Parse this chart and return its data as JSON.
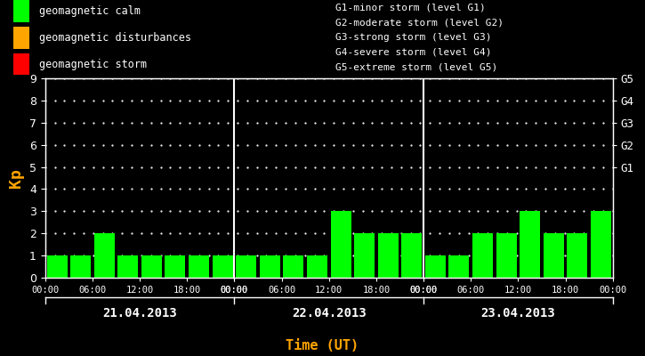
{
  "background_color": "#000000",
  "plot_bg_color": "#000000",
  "bar_color_calm": "#00ff00",
  "bar_color_disturbance": "#ffaa00",
  "bar_color_storm": "#ff0000",
  "text_color": "#ffffff",
  "orange_color": "#ffa500",
  "axis_color": "#ffffff",
  "days": [
    "21.04.2013",
    "22.04.2013",
    "23.04.2013"
  ],
  "kp_values": [
    [
      1,
      1,
      2,
      1,
      1,
      1,
      1,
      1
    ],
    [
      1,
      1,
      1,
      1,
      3,
      2,
      2,
      2
    ],
    [
      1,
      1,
      2,
      2,
      3,
      2,
      2,
      3
    ]
  ],
  "ylim": [
    0,
    9
  ],
  "yticks": [
    0,
    1,
    2,
    3,
    4,
    5,
    6,
    7,
    8,
    9
  ],
  "xtick_labels": [
    "00:00",
    "06:00",
    "12:00",
    "18:00",
    "00:00"
  ],
  "ylabel": "Kp",
  "xlabel": "Time (UT)",
  "right_labels": [
    [
      "G5",
      9
    ],
    [
      "G4",
      8
    ],
    [
      "G3",
      7
    ],
    [
      "G2",
      6
    ],
    [
      "G1",
      5
    ]
  ],
  "legend_items": [
    {
      "label": "geomagnetic calm",
      "color": "#00ff00"
    },
    {
      "label": "geomagnetic disturbances",
      "color": "#ffa500"
    },
    {
      "label": "geomagnetic storm",
      "color": "#ff0000"
    }
  ],
  "legend_text": [
    "G1-minor storm (level G1)",
    "G2-moderate storm (level G2)",
    "G3-strong storm (level G3)",
    "G4-severe storm (level G4)",
    "G5-extreme storm (level G5)"
  ],
  "vline_color": "#ffffff",
  "font_family": "monospace"
}
